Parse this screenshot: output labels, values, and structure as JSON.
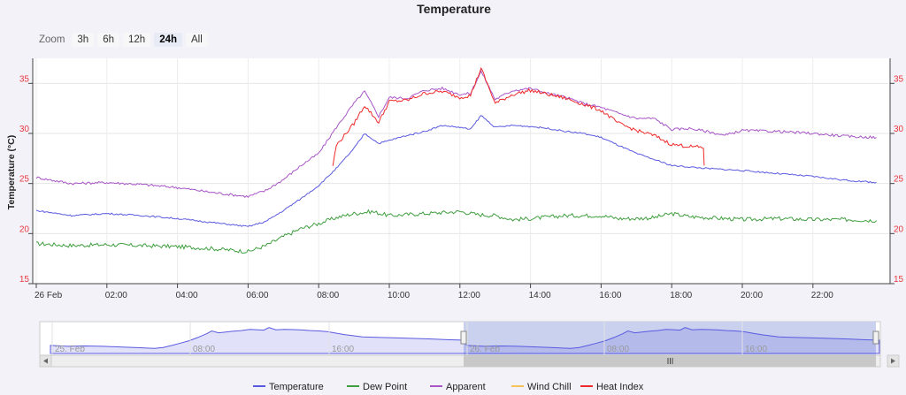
{
  "title": "Temperature",
  "zoom": {
    "label": "Zoom",
    "buttons": [
      "3h",
      "6h",
      "12h",
      "24h",
      "All"
    ],
    "selected": "24h"
  },
  "colors": {
    "temperature": "#5a5ae0",
    "dew_point": "#3f9f3f",
    "apparent": "#a855c7",
    "wind_chill": "#f5c25c",
    "heat_index": "#f02a2a",
    "axis_tick": "#e8383f"
  },
  "chart_data": {
    "type": "line",
    "title": "Temperature",
    "ylabel": "Temperature (°C)",
    "ylim": [
      15,
      37.5
    ],
    "yticks": [
      15,
      20,
      25,
      30,
      35
    ],
    "xlim": [
      0,
      23.8
    ],
    "xticks": [
      {
        "h": 0,
        "label": "26 Feb"
      },
      {
        "h": 2,
        "label": "02:00"
      },
      {
        "h": 4,
        "label": "04:00"
      },
      {
        "h": 6,
        "label": "06:00"
      },
      {
        "h": 8,
        "label": "08:00"
      },
      {
        "h": 10,
        "label": "10:00"
      },
      {
        "h": 12,
        "label": "12:00"
      },
      {
        "h": 14,
        "label": "14:00"
      },
      {
        "h": 16,
        "label": "16:00"
      },
      {
        "h": 18,
        "label": "18:00"
      },
      {
        "h": 20,
        "label": "20:00"
      },
      {
        "h": 22,
        "label": "22:00"
      }
    ],
    "grid": true,
    "legend_position": "bottom",
    "series": [
      {
        "name": "Temperature",
        "key": "temperature",
        "points": [
          [
            0,
            22.3
          ],
          [
            1,
            21.8
          ],
          [
            2,
            22.0
          ],
          [
            3,
            21.8
          ],
          [
            4,
            21.5
          ],
          [
            5,
            21.1
          ],
          [
            6,
            20.7
          ],
          [
            6.5,
            21.2
          ],
          [
            7,
            22.3
          ],
          [
            7.5,
            23.5
          ],
          [
            8,
            24.8
          ],
          [
            8.5,
            26.5
          ],
          [
            9,
            28.5
          ],
          [
            9.3,
            30.0
          ],
          [
            9.7,
            29.0
          ],
          [
            10,
            29.3
          ],
          [
            10.5,
            29.8
          ],
          [
            11,
            30.2
          ],
          [
            11.5,
            30.8
          ],
          [
            12,
            30.6
          ],
          [
            12.3,
            30.4
          ],
          [
            12.6,
            31.8
          ],
          [
            13,
            30.6
          ],
          [
            13.5,
            30.8
          ],
          [
            14,
            30.7
          ],
          [
            14.5,
            30.5
          ],
          [
            15,
            30.2
          ],
          [
            15.5,
            30.0
          ],
          [
            16,
            29.6
          ],
          [
            16.5,
            28.8
          ],
          [
            17,
            28.0
          ],
          [
            17.5,
            27.4
          ],
          [
            18,
            26.8
          ],
          [
            19,
            26.5
          ],
          [
            20,
            26.3
          ],
          [
            21,
            26.0
          ],
          [
            22,
            25.7
          ],
          [
            23,
            25.3
          ],
          [
            23.8,
            25.1
          ]
        ]
      },
      {
        "name": "Dew Point",
        "key": "dew_point",
        "points": [
          [
            0,
            19.0
          ],
          [
            1,
            18.8
          ],
          [
            2,
            18.9
          ],
          [
            3,
            18.8
          ],
          [
            4,
            18.7
          ],
          [
            5,
            18.5
          ],
          [
            6,
            18.2
          ],
          [
            6.5,
            18.8
          ],
          [
            7,
            19.7
          ],
          [
            7.5,
            20.5
          ],
          [
            8,
            21.0
          ],
          [
            8.5,
            21.6
          ],
          [
            9,
            22.0
          ],
          [
            9.5,
            22.2
          ],
          [
            10,
            21.8
          ],
          [
            11,
            22.0
          ],
          [
            12,
            22.2
          ],
          [
            12.5,
            21.9
          ],
          [
            13,
            21.8
          ],
          [
            13.5,
            21.4
          ],
          [
            14,
            21.5
          ],
          [
            15,
            21.8
          ],
          [
            16,
            21.8
          ],
          [
            16.5,
            21.5
          ],
          [
            17,
            21.5
          ],
          [
            17.5,
            21.6
          ],
          [
            18,
            22.0
          ],
          [
            18.5,
            21.7
          ],
          [
            19,
            21.6
          ],
          [
            20,
            21.4
          ],
          [
            21,
            21.5
          ],
          [
            22,
            21.4
          ],
          [
            23,
            21.4
          ],
          [
            23.8,
            21.3
          ]
        ]
      },
      {
        "name": "Apparent",
        "key": "apparent",
        "points": [
          [
            0,
            25.6
          ],
          [
            1,
            25.0
          ],
          [
            2,
            25.1
          ],
          [
            3,
            24.9
          ],
          [
            4,
            24.6
          ],
          [
            5,
            24.1
          ],
          [
            6,
            23.7
          ],
          [
            6.5,
            24.3
          ],
          [
            7,
            25.4
          ],
          [
            7.5,
            26.8
          ],
          [
            8,
            28.0
          ],
          [
            8.5,
            30.6
          ],
          [
            9,
            33.0
          ],
          [
            9.3,
            34.2
          ],
          [
            9.7,
            31.7
          ],
          [
            10,
            33.6
          ],
          [
            10.5,
            33.5
          ],
          [
            11,
            34.3
          ],
          [
            11.5,
            34.5
          ],
          [
            12,
            33.9
          ],
          [
            12.3,
            34.0
          ],
          [
            12.6,
            36.2
          ],
          [
            13,
            33.4
          ],
          [
            13.5,
            34.3
          ],
          [
            14,
            34.5
          ],
          [
            14.5,
            34.0
          ],
          [
            15,
            33.6
          ],
          [
            15.5,
            33.0
          ],
          [
            16,
            32.6
          ],
          [
            16.5,
            32.0
          ],
          [
            17,
            31.5
          ],
          [
            17.5,
            31.5
          ],
          [
            18,
            30.4
          ],
          [
            18.5,
            30.5
          ],
          [
            19,
            30.2
          ],
          [
            19.5,
            29.8
          ],
          [
            20,
            30.3
          ],
          [
            21,
            30.2
          ],
          [
            22,
            30.0
          ],
          [
            23,
            29.7
          ],
          [
            23.8,
            29.6
          ]
        ]
      },
      {
        "name": "Wind Chill",
        "key": "wind_chill",
        "points": []
      },
      {
        "name": "Heat Index",
        "key": "heat_index",
        "points": [
          [
            8.4,
            26.8
          ],
          [
            8.5,
            28.8
          ],
          [
            9,
            31.0
          ],
          [
            9.3,
            32.8
          ],
          [
            9.7,
            31.1
          ],
          [
            10,
            33.2
          ],
          [
            10.5,
            33.3
          ],
          [
            11,
            34.0
          ],
          [
            11.5,
            34.2
          ],
          [
            12,
            33.6
          ],
          [
            12.3,
            33.8
          ],
          [
            12.6,
            36.5
          ],
          [
            13,
            33.0
          ],
          [
            13.5,
            33.9
          ],
          [
            14,
            34.3
          ],
          [
            14.5,
            33.9
          ],
          [
            15,
            33.5
          ],
          [
            15.5,
            32.9
          ],
          [
            16,
            32.3
          ],
          [
            16.5,
            31.0
          ],
          [
            17,
            30.3
          ],
          [
            17.5,
            29.8
          ],
          [
            18,
            28.9
          ],
          [
            18.5,
            28.7
          ],
          [
            18.9,
            28.6
          ],
          [
            18.92,
            26.8
          ]
        ]
      }
    ],
    "navigator": {
      "tick_labels": [
        "25. Feb",
        "08:00",
        "16:00",
        "26. Feb",
        "08:00",
        "16:00"
      ],
      "selected_range_label": "26 Feb"
    }
  }
}
